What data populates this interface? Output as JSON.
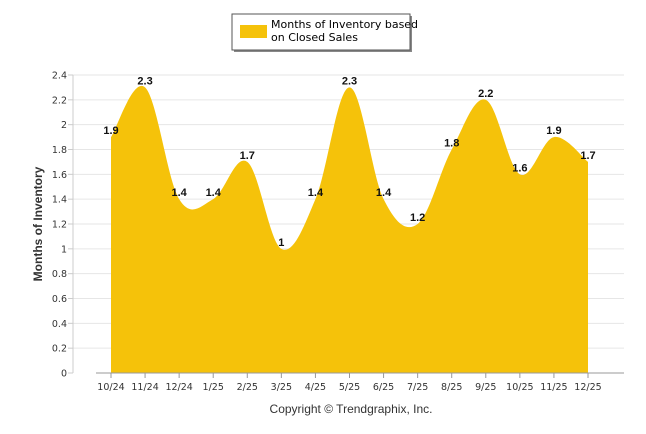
{
  "chart_data": {
    "type": "area",
    "categories": [
      "10/24",
      "11/24",
      "12/24",
      "1/25",
      "2/25",
      "3/25",
      "4/25",
      "5/25",
      "6/25",
      "7/25",
      "8/25",
      "9/25",
      "10/25",
      "11/25",
      "12/25"
    ],
    "series": [
      {
        "name": "Months of Inventory based on Closed Sales",
        "values": [
          1.9,
          2.3,
          1.4,
          1.4,
          1.7,
          1,
          1.4,
          2.3,
          1.4,
          1.2,
          1.8,
          2.2,
          1.6,
          1.9,
          1.7
        ],
        "labels": [
          "1.9",
          "2.3",
          "1.4",
          "1.4",
          "1.7",
          "1",
          "1.4",
          "2.3",
          "1.4",
          "1.2",
          "1.8",
          "2.2",
          "1.6",
          "1.9",
          "1.7"
        ]
      }
    ],
    "ylabel": "Months of Inventory",
    "xlabel": "",
    "ylim": [
      0,
      2.4
    ],
    "yticks": [
      "0",
      "0.2",
      "0.4",
      "0.6",
      "0.8",
      "1",
      "1.2",
      "1.4",
      "1.6",
      "1.8",
      "2",
      "2.2",
      "2.4"
    ],
    "grid": true,
    "legend": {
      "position": "top-center",
      "line1": "Months of Inventory based",
      "line2": "on Closed Sales"
    },
    "colors": {
      "area": "#F5C20A",
      "grid": "#E6E6E6",
      "axis": "#999999"
    },
    "footer": "Copyright © Trendgraphix, Inc."
  }
}
